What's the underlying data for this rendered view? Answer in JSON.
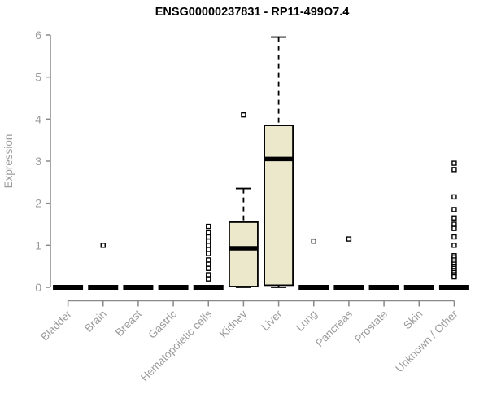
{
  "page": {
    "background": "#ffffff"
  },
  "chart_data": {
    "type": "boxplot",
    "title": "ENSG00000237831 - RP11-499O7.4",
    "ylabel": "Expression",
    "xlabel": "",
    "ylim": [
      0,
      6
    ],
    "yticks": [
      0,
      1,
      2,
      3,
      4,
      5,
      6
    ],
    "grid": false,
    "legend": null,
    "categories": [
      "Bladder",
      "Brain",
      "Breast",
      "Gastric",
      "Hematopoietic cells",
      "Kidney",
      "Liver",
      "Lung",
      "Pancreas",
      "Prostate",
      "Skin",
      "Unknown / Other"
    ],
    "series": [
      {
        "category": "Bladder",
        "q1": 0,
        "median": 0,
        "q3": 0,
        "whisker_low": 0,
        "whisker_high": 0,
        "outliers": []
      },
      {
        "category": "Brain",
        "q1": 0,
        "median": 0,
        "q3": 0,
        "whisker_low": 0,
        "whisker_high": 0,
        "outliers": [
          1.0
        ]
      },
      {
        "category": "Breast",
        "q1": 0,
        "median": 0,
        "q3": 0,
        "whisker_low": 0,
        "whisker_high": 0,
        "outliers": []
      },
      {
        "category": "Gastric",
        "q1": 0,
        "median": 0,
        "q3": 0,
        "whisker_low": 0,
        "whisker_high": 0,
        "outliers": []
      },
      {
        "category": "Hematopoietic cells",
        "q1": 0,
        "median": 0,
        "q3": 0,
        "whisker_low": 0,
        "whisker_high": 0,
        "outliers": [
          1.45,
          1.3,
          1.2,
          1.1,
          1.0,
          0.9,
          0.8,
          0.65,
          0.55,
          0.45,
          0.3,
          0.2
        ]
      },
      {
        "category": "Kidney",
        "q1": 0.02,
        "median": 0.93,
        "q3": 1.55,
        "whisker_low": 0,
        "whisker_high": 2.35,
        "outliers": [
          4.1
        ]
      },
      {
        "category": "Liver",
        "q1": 0.05,
        "median": 3.05,
        "q3": 3.85,
        "whisker_low": 0,
        "whisker_high": 5.95,
        "outliers": []
      },
      {
        "category": "Lung",
        "q1": 0,
        "median": 0,
        "q3": 0,
        "whisker_low": 0,
        "whisker_high": 0,
        "outliers": [
          1.1
        ]
      },
      {
        "category": "Pancreas",
        "q1": 0,
        "median": 0,
        "q3": 0,
        "whisker_low": 0,
        "whisker_high": 0,
        "outliers": [
          1.15
        ]
      },
      {
        "category": "Prostate",
        "q1": 0,
        "median": 0,
        "q3": 0,
        "whisker_low": 0,
        "whisker_high": 0,
        "outliers": []
      },
      {
        "category": "Skin",
        "q1": 0,
        "median": 0,
        "q3": 0,
        "whisker_low": 0,
        "whisker_high": 0,
        "outliers": []
      },
      {
        "category": "Unknown / Other",
        "q1": 0,
        "median": 0,
        "q3": 0,
        "whisker_low": 0,
        "whisker_high": 0,
        "outliers": [
          2.95,
          2.8,
          2.15,
          1.85,
          1.65,
          1.5,
          1.4,
          1.2,
          1.0,
          0.75,
          0.7,
          0.65,
          0.6,
          0.55,
          0.5,
          0.45,
          0.4,
          0.35,
          0.3,
          0.25
        ]
      }
    ],
    "colors": {
      "box_fill": "#ECE8CC",
      "box_border": "#000000",
      "median": "#000000",
      "axis": "#898989",
      "tick_label": "#9B9B9B",
      "title": "#000000"
    }
  }
}
